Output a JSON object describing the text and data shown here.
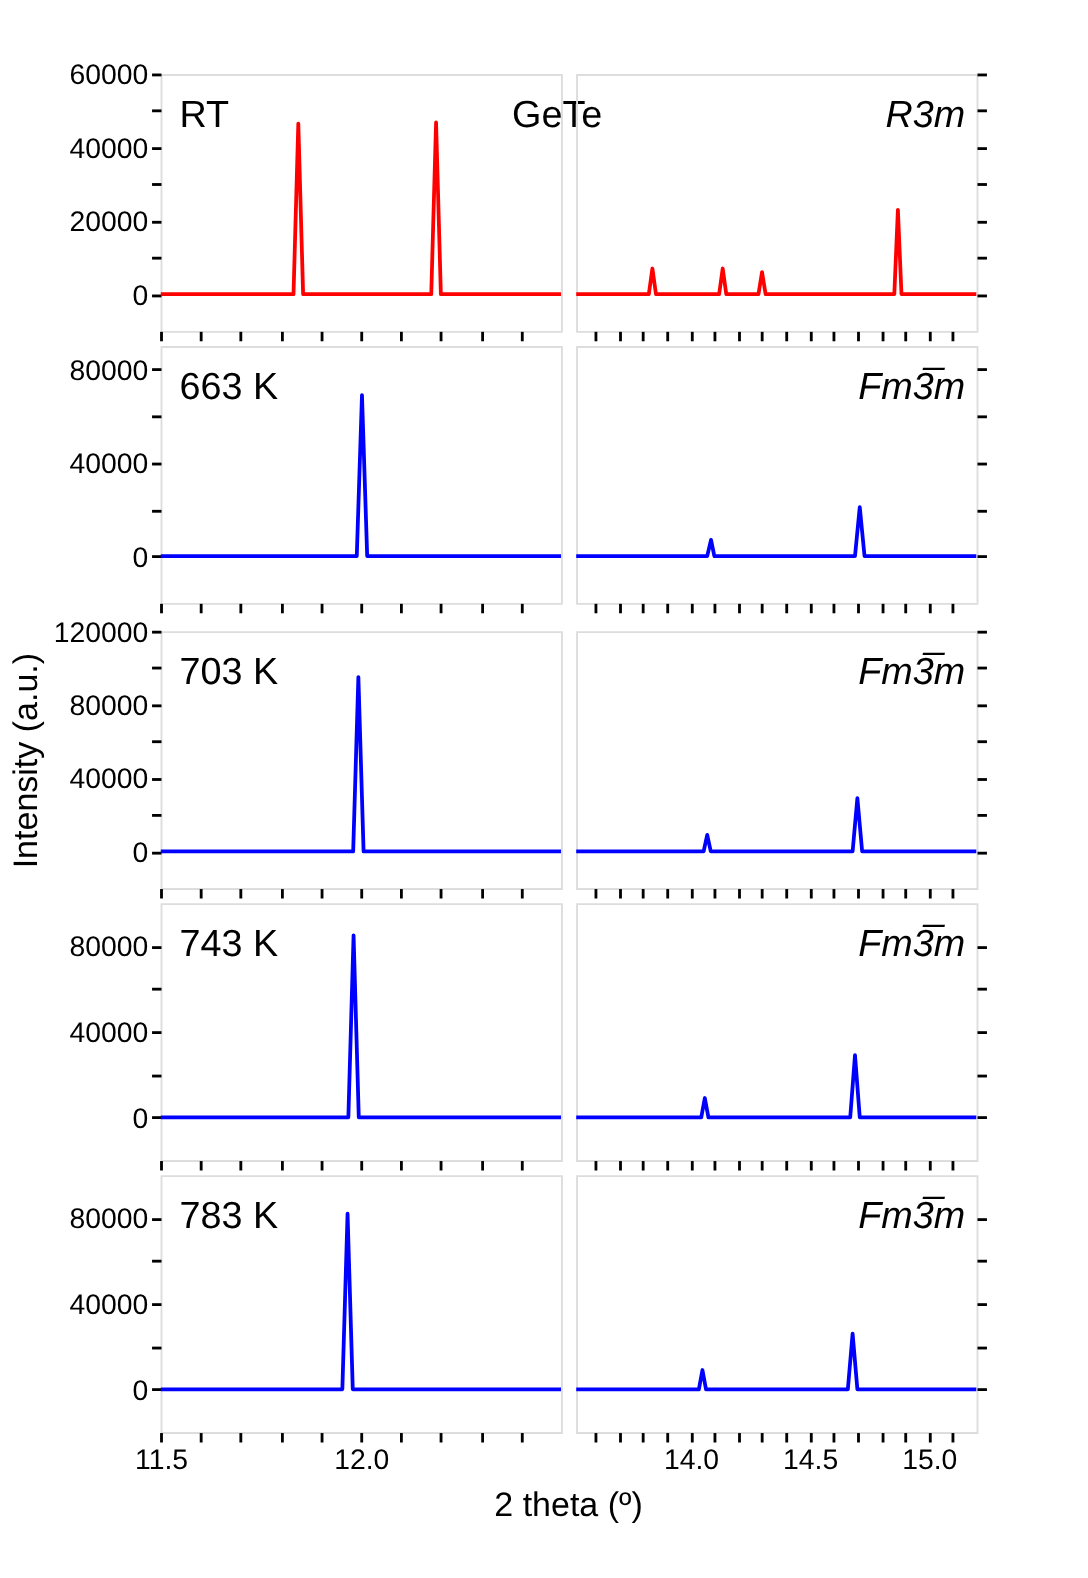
{
  "chart_data": [
    {
      "type": "line",
      "annotations": [
        "RT",
        "GeTe"
      ],
      "x": [
        11.5,
        11.832,
        11.844,
        11.856,
        12.176,
        12.188,
        12.2,
        12.5
      ],
      "series": [
        {
          "color": "#ff0000",
          "values": [
            0,
            0,
            46500,
            0,
            0,
            46800,
            0,
            0
          ]
        }
      ],
      "xlim": [
        11.5,
        12.5
      ],
      "xticks": [
        {
          "value": 11.5,
          "label": null
        },
        {
          "value": 11.6,
          "label": null
        },
        {
          "value": 11.7,
          "label": null
        },
        {
          "value": 11.8,
          "label": null
        },
        {
          "value": 11.9,
          "label": null
        },
        {
          "value": 12,
          "label": null
        },
        {
          "value": 12.1,
          "label": null
        },
        {
          "value": 12.2,
          "label": null
        },
        {
          "value": 12.3,
          "label": null
        },
        {
          "value": 12.4,
          "label": null
        }
      ],
      "ylim": [
        -10000,
        60000
      ],
      "yticks": [
        0,
        {
          "value": 10000,
          "label": null
        },
        20000,
        {
          "value": 30000,
          "label": null
        },
        40000,
        {
          "value": 50000,
          "label": null
        },
        60000
      ],
      "tick_labels": "y"
    },
    {
      "type": "line",
      "annotations": [
        "R3m"
      ],
      "x": [
        13.52,
        13.825,
        13.84,
        13.855,
        14.12,
        14.135,
        14.15,
        14.285,
        14.3,
        14.315,
        14.855,
        14.87,
        14.885,
        15.2
      ],
      "series": [
        {
          "color": "#ff0000",
          "values": [
            0,
            0,
            7000,
            0,
            0,
            7000,
            0,
            0,
            6000,
            0,
            0,
            23000,
            0,
            0
          ]
        }
      ],
      "xlim": [
        13.52,
        15.2
      ],
      "xticks": [
        {
          "value": 13.6,
          "label": null
        },
        {
          "value": 13.7,
          "label": null
        },
        {
          "value": 13.8,
          "label": null
        },
        {
          "value": 13.9,
          "label": null
        },
        {
          "value": 14,
          "label": null
        },
        {
          "value": 14.1,
          "label": null
        },
        {
          "value": 14.2,
          "label": null
        },
        {
          "value": 14.3,
          "label": null
        },
        {
          "value": 14.4,
          "label": null
        },
        {
          "value": 14.5,
          "label": null
        },
        {
          "value": 14.6,
          "label": null
        },
        {
          "value": 14.7,
          "label": null
        },
        {
          "value": 14.8,
          "label": null
        },
        {
          "value": 14.9,
          "label": null
        },
        {
          "value": 15,
          "label": null
        },
        {
          "value": 15.1,
          "label": null
        }
      ],
      "ylim": [
        -10000,
        60000
      ],
      "yticks": [
        0,
        {
          "value": 10000,
          "label": null
        },
        20000,
        {
          "value": 30000,
          "label": null
        },
        40000,
        {
          "value": 50000,
          "label": null
        },
        60000
      ],
      "tick_labels": false
    },
    {
      "type": "line",
      "annotations": [
        "663 K"
      ],
      "x": [
        11.5,
        11.99,
        12.003,
        12.016,
        12.5
      ],
      "series": [
        {
          "color": "#0000ff",
          "values": [
            0,
            0,
            69000,
            0,
            0
          ]
        }
      ],
      "xlim": [
        11.5,
        12.5
      ],
      "xticks": [
        {
          "value": 11.5,
          "label": null
        },
        {
          "value": 11.6,
          "label": null
        },
        {
          "value": 11.7,
          "label": null
        },
        {
          "value": 11.8,
          "label": null
        },
        {
          "value": 11.9,
          "label": null
        },
        {
          "value": 12,
          "label": null
        },
        {
          "value": 12.1,
          "label": null
        },
        {
          "value": 12.2,
          "label": null
        },
        {
          "value": 12.3,
          "label": null
        },
        {
          "value": 12.4,
          "label": null
        }
      ],
      "ylim": [
        -20000,
        90000
      ],
      "yticks": [
        0,
        {
          "value": 20000,
          "label": null
        },
        40000,
        {
          "value": 60000,
          "label": null
        },
        80000
      ],
      "tick_labels": "y"
    },
    {
      "type": "line",
      "annotations": [
        "Fm3̅m"
      ],
      "x": [
        13.52,
        14.07,
        14.086,
        14.1,
        14.69,
        14.71,
        14.73,
        15.2
      ],
      "series": [
        {
          "color": "#0000ff",
          "values": [
            0,
            0,
            7000,
            0,
            0,
            21000,
            0,
            0
          ]
        }
      ],
      "xlim": [
        13.52,
        15.2
      ],
      "xticks": [
        {
          "value": 13.6,
          "label": null
        },
        {
          "value": 13.7,
          "label": null
        },
        {
          "value": 13.8,
          "label": null
        },
        {
          "value": 13.9,
          "label": null
        },
        {
          "value": 14,
          "label": null
        },
        {
          "value": 14.1,
          "label": null
        },
        {
          "value": 14.2,
          "label": null
        },
        {
          "value": 14.3,
          "label": null
        },
        {
          "value": 14.4,
          "label": null
        },
        {
          "value": 14.5,
          "label": null
        },
        {
          "value": 14.6,
          "label": null
        },
        {
          "value": 14.7,
          "label": null
        },
        {
          "value": 14.8,
          "label": null
        },
        {
          "value": 14.9,
          "label": null
        },
        {
          "value": 15,
          "label": null
        },
        {
          "value": 15.1,
          "label": null
        }
      ],
      "ylim": [
        -20000,
        90000
      ],
      "yticks": [
        0,
        {
          "value": 20000,
          "label": null
        },
        40000,
        {
          "value": 60000,
          "label": null
        },
        80000
      ],
      "tick_labels": false
    },
    {
      "type": "line",
      "annotations": [
        "703 K"
      ],
      "ylabel": "Intensity (a.u.)",
      "x": [
        11.5,
        11.981,
        11.994,
        12.007,
        12.5
      ],
      "series": [
        {
          "color": "#0000ff",
          "values": [
            0,
            0,
            95000,
            0,
            0
          ]
        }
      ],
      "xlim": [
        11.5,
        12.5
      ],
      "xticks": [
        {
          "value": 11.5,
          "label": null
        },
        {
          "value": 11.6,
          "label": null
        },
        {
          "value": 11.7,
          "label": null
        },
        {
          "value": 11.8,
          "label": null
        },
        {
          "value": 11.9,
          "label": null
        },
        {
          "value": 12,
          "label": null
        },
        {
          "value": 12.1,
          "label": null
        },
        {
          "value": 12.2,
          "label": null
        },
        {
          "value": 12.3,
          "label": null
        },
        {
          "value": 12.4,
          "label": null
        }
      ],
      "ylim": [
        -20000,
        120000
      ],
      "yticks": [
        0,
        {
          "value": 20000,
          "label": null
        },
        40000,
        {
          "value": 60000,
          "label": null
        },
        80000,
        {
          "value": 100000,
          "label": null
        },
        120000
      ],
      "tick_labels": "y"
    },
    {
      "type": "line",
      "annotations": [
        "Fm3̅m"
      ],
      "x": [
        13.52,
        14.055,
        14.07,
        14.085,
        14.68,
        14.7,
        14.72,
        15.2
      ],
      "series": [
        {
          "color": "#0000ff",
          "values": [
            0,
            0,
            9000,
            0,
            0,
            29000,
            0,
            0
          ]
        }
      ],
      "xlim": [
        13.52,
        15.2
      ],
      "xticks": [
        {
          "value": 13.6,
          "label": null
        },
        {
          "value": 13.7,
          "label": null
        },
        {
          "value": 13.8,
          "label": null
        },
        {
          "value": 13.9,
          "label": null
        },
        {
          "value": 14,
          "label": null
        },
        {
          "value": 14.1,
          "label": null
        },
        {
          "value": 14.2,
          "label": null
        },
        {
          "value": 14.3,
          "label": null
        },
        {
          "value": 14.4,
          "label": null
        },
        {
          "value": 14.5,
          "label": null
        },
        {
          "value": 14.6,
          "label": null
        },
        {
          "value": 14.7,
          "label": null
        },
        {
          "value": 14.8,
          "label": null
        },
        {
          "value": 14.9,
          "label": null
        },
        {
          "value": 15,
          "label": null
        },
        {
          "value": 15.1,
          "label": null
        }
      ],
      "ylim": [
        -20000,
        120000
      ],
      "yticks": [
        0,
        {
          "value": 20000,
          "label": null
        },
        40000,
        {
          "value": 60000,
          "label": null
        },
        80000,
        {
          "value": 100000,
          "label": null
        },
        120000
      ],
      "tick_labels": false
    },
    {
      "type": "line",
      "annotations": [
        "743 K"
      ],
      "x": [
        11.5,
        11.969,
        11.982,
        11.995,
        12.5
      ],
      "series": [
        {
          "color": "#0000ff",
          "values": [
            0,
            0,
            85000,
            0,
            0
          ]
        }
      ],
      "xlim": [
        11.5,
        12.5
      ],
      "xticks": [
        {
          "value": 11.5,
          "label": null
        },
        {
          "value": 11.6,
          "label": null
        },
        {
          "value": 11.7,
          "label": null
        },
        {
          "value": 11.8,
          "label": null
        },
        {
          "value": 11.9,
          "label": null
        },
        {
          "value": 12,
          "label": null
        },
        {
          "value": 12.1,
          "label": null
        },
        {
          "value": 12.2,
          "label": null
        },
        {
          "value": 12.3,
          "label": null
        },
        {
          "value": 12.4,
          "label": null
        }
      ],
      "ylim": [
        -20000,
        100000
      ],
      "yticks": [
        0,
        {
          "value": 20000,
          "label": null
        },
        40000,
        {
          "value": 60000,
          "label": null
        },
        80000
      ],
      "tick_labels": "y"
    },
    {
      "type": "line",
      "annotations": [
        "Fm3̅m"
      ],
      "x": [
        13.52,
        14.045,
        14.06,
        14.075,
        14.67,
        14.69,
        14.71,
        15.2
      ],
      "series": [
        {
          "color": "#0000ff",
          "values": [
            0,
            0,
            9000,
            0,
            0,
            29000,
            0,
            0
          ]
        }
      ],
      "xlim": [
        13.52,
        15.2
      ],
      "xticks": [
        {
          "value": 13.6,
          "label": null
        },
        {
          "value": 13.7,
          "label": null
        },
        {
          "value": 13.8,
          "label": null
        },
        {
          "value": 13.9,
          "label": null
        },
        {
          "value": 14,
          "label": null
        },
        {
          "value": 14.1,
          "label": null
        },
        {
          "value": 14.2,
          "label": null
        },
        {
          "value": 14.3,
          "label": null
        },
        {
          "value": 14.4,
          "label": null
        },
        {
          "value": 14.5,
          "label": null
        },
        {
          "value": 14.6,
          "label": null
        },
        {
          "value": 14.7,
          "label": null
        },
        {
          "value": 14.8,
          "label": null
        },
        {
          "value": 14.9,
          "label": null
        },
        {
          "value": 15,
          "label": null
        },
        {
          "value": 15.1,
          "label": null
        }
      ],
      "ylim": [
        -20000,
        100000
      ],
      "yticks": [
        0,
        {
          "value": 20000,
          "label": null
        },
        40000,
        {
          "value": 60000,
          "label": null
        },
        80000
      ],
      "tick_labels": false
    },
    {
      "type": "line",
      "annotations": [
        "783 K"
      ],
      "x": [
        11.5,
        11.954,
        11.967,
        11.98,
        12.5
      ],
      "series": [
        {
          "color": "#0000ff",
          "values": [
            0,
            0,
            82000,
            0,
            0
          ]
        }
      ],
      "xlim": [
        11.5,
        12.5
      ],
      "xticks": [
        11.5,
        {
          "value": 11.6,
          "label": null
        },
        {
          "value": 11.7,
          "label": null
        },
        {
          "value": 11.8,
          "label": null
        },
        {
          "value": 11.9,
          "label": null
        },
        {
          "value": 12,
          "label": "12.0"
        },
        {
          "value": 12.1,
          "label": null
        },
        {
          "value": 12.2,
          "label": null
        },
        {
          "value": 12.3,
          "label": null
        },
        {
          "value": 12.4,
          "label": null
        }
      ],
      "ylim": [
        -20000,
        100000
      ],
      "yticks": [
        0,
        {
          "value": 20000,
          "label": null
        },
        40000,
        {
          "value": 60000,
          "label": null
        },
        80000
      ]
    },
    {
      "type": "line",
      "annotations": [
        "Fm3̅m"
      ],
      "xlabel": "2 theta (º)",
      "x": [
        13.52,
        14.035,
        14.05,
        14.065,
        14.66,
        14.68,
        14.7,
        15.2
      ],
      "series": [
        {
          "color": "#0000ff",
          "values": [
            0,
            0,
            9000,
            0,
            0,
            26000,
            0,
            0
          ]
        }
      ],
      "xlim": [
        13.52,
        15.2
      ],
      "xticks": [
        {
          "value": 13.6,
          "label": null
        },
        {
          "value": 13.7,
          "label": null
        },
        {
          "value": 13.8,
          "label": null
        },
        {
          "value": 13.9,
          "label": null
        },
        {
          "value": 14,
          "label": "14.0"
        },
        {
          "value": 14.1,
          "label": null
        },
        {
          "value": 14.2,
          "label": null
        },
        {
          "value": 14.3,
          "label": null
        },
        {
          "value": 14.4,
          "label": null
        },
        14.5,
        {
          "value": 14.6,
          "label": null
        },
        {
          "value": 14.7,
          "label": null
        },
        {
          "value": 14.8,
          "label": null
        },
        {
          "value": 14.9,
          "label": null
        },
        {
          "value": 15,
          "label": "15.0"
        },
        {
          "value": 15.1,
          "label": null
        }
      ],
      "ylim": [
        -20000,
        100000
      ],
      "yticks": [
        0,
        {
          "value": 20000,
          "label": null
        },
        40000,
        {
          "value": 60000,
          "label": null
        },
        80000
      ],
      "tick_labels": "x"
    }
  ]
}
